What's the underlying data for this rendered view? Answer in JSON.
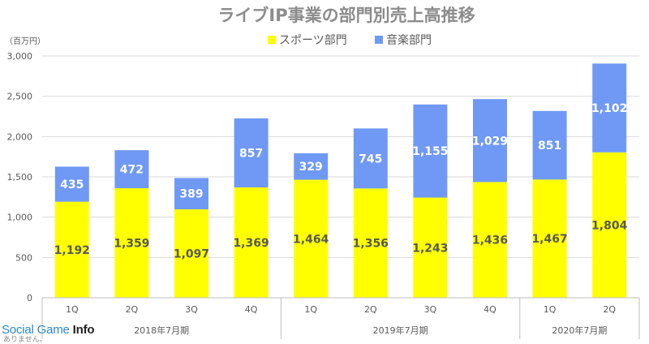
{
  "chart_data": {
    "type": "bar",
    "stacked": true,
    "title": "ライブIP事業の部門別売上高推移",
    "ylabel": "（百万円）",
    "ylim": [
      0,
      3000
    ],
    "yticks": [
      "0",
      "500",
      "1,000",
      "1,500",
      "2,000",
      "2,500",
      "3,000"
    ],
    "ytick_values": [
      0,
      500,
      1000,
      1500,
      2000,
      2500,
      3000
    ],
    "grid": true,
    "legend_position": "top",
    "categories": [
      "1Q",
      "2Q",
      "3Q",
      "4Q",
      "1Q",
      "2Q",
      "3Q",
      "4Q",
      "1Q",
      "2Q"
    ],
    "groups": [
      {
        "label": "2018年7月期",
        "count": 4
      },
      {
        "label": "2019年7月期",
        "count": 4
      },
      {
        "label": "2020年7月期",
        "count": 2
      }
    ],
    "series": [
      {
        "name": "スポーツ部門",
        "color": "#ffff00",
        "values": [
          1192,
          1359,
          1097,
          1369,
          1464,
          1356,
          1243,
          1436,
          1467,
          1804
        ],
        "labels": [
          "1,192",
          "1,359",
          "1,097",
          "1,369",
          "1,464",
          "1,356",
          "1,243",
          "1,436",
          "1,467",
          "1,804"
        ]
      },
      {
        "name": "音楽部門",
        "color": "#6f99f5",
        "values": [
          435,
          472,
          389,
          857,
          329,
          745,
          1155,
          1029,
          851,
          1102
        ],
        "labels": [
          "435",
          "472",
          "389",
          "857",
          "329",
          "745",
          "1,155",
          "1,029",
          "851",
          "1,102"
        ]
      }
    ]
  },
  "watermark": {
    "brand": "Social Game ",
    "brand_bold": "Info",
    "caption": "ありません。"
  }
}
